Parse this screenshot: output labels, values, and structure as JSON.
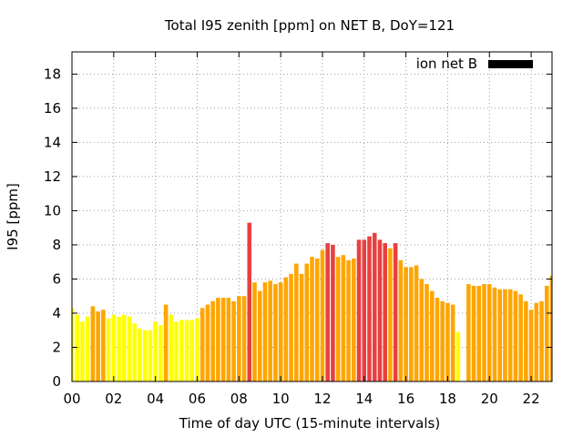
{
  "chart_data": {
    "type": "bar",
    "title": "Total I95 zenith [ppm] on NET B, DoY=121",
    "xlabel": "Time of day UTC (15-minute intervals)",
    "ylabel": "I95 [ppm]",
    "legend": {
      "label": "ion net B",
      "color": "#000000",
      "placement": "top-right"
    },
    "xlim": [
      0,
      23
    ],
    "ylim": [
      0,
      19.3
    ],
    "grid": true,
    "x_ticks": [
      {
        "value": 0,
        "label": "00"
      },
      {
        "value": 2,
        "label": "02"
      },
      {
        "value": 4,
        "label": "04"
      },
      {
        "value": 6,
        "label": "06"
      },
      {
        "value": 8,
        "label": "08"
      },
      {
        "value": 10,
        "label": "10"
      },
      {
        "value": 12,
        "label": "12"
      },
      {
        "value": 14,
        "label": "14"
      },
      {
        "value": 16,
        "label": "16"
      },
      {
        "value": 18,
        "label": "18"
      },
      {
        "value": 20,
        "label": "20"
      },
      {
        "value": 22,
        "label": "22"
      }
    ],
    "y_ticks": [
      {
        "value": 0,
        "label": "0"
      },
      {
        "value": 2,
        "label": "2"
      },
      {
        "value": 4,
        "label": "4"
      },
      {
        "value": 6,
        "label": "6"
      },
      {
        "value": 8,
        "label": "8"
      },
      {
        "value": 10,
        "label": "10"
      },
      {
        "value": 12,
        "label": "12"
      },
      {
        "value": 14,
        "label": "14"
      },
      {
        "value": 16,
        "label": "16"
      },
      {
        "value": 18,
        "label": "18"
      }
    ],
    "color_classes": {
      "low": "#ffff00",
      "mid": "#ffa500",
      "high": "#e84040"
    },
    "bar_width_hours": 0.2,
    "bars": [
      {
        "x": 0.0,
        "y": 4.3,
        "c": "low"
      },
      {
        "x": 0.25,
        "y": 3.9,
        "c": "low"
      },
      {
        "x": 0.5,
        "y": 3.5,
        "c": "low"
      },
      {
        "x": 0.75,
        "y": 3.8,
        "c": "low"
      },
      {
        "x": 1.0,
        "y": 4.4,
        "c": "mid"
      },
      {
        "x": 1.25,
        "y": 4.1,
        "c": "mid"
      },
      {
        "x": 1.5,
        "y": 4.2,
        "c": "mid"
      },
      {
        "x": 1.75,
        "y": 3.7,
        "c": "low"
      },
      {
        "x": 2.0,
        "y": 3.9,
        "c": "low"
      },
      {
        "x": 2.25,
        "y": 3.8,
        "c": "low"
      },
      {
        "x": 2.5,
        "y": 3.9,
        "c": "low"
      },
      {
        "x": 2.75,
        "y": 3.8,
        "c": "low"
      },
      {
        "x": 3.0,
        "y": 3.4,
        "c": "low"
      },
      {
        "x": 3.25,
        "y": 3.1,
        "c": "low"
      },
      {
        "x": 3.5,
        "y": 3.0,
        "c": "low"
      },
      {
        "x": 3.75,
        "y": 3.0,
        "c": "low"
      },
      {
        "x": 4.0,
        "y": 3.5,
        "c": "low"
      },
      {
        "x": 4.25,
        "y": 3.3,
        "c": "low"
      },
      {
        "x": 4.5,
        "y": 4.5,
        "c": "mid"
      },
      {
        "x": 4.75,
        "y": 3.9,
        "c": "low"
      },
      {
        "x": 5.0,
        "y": 3.5,
        "c": "low"
      },
      {
        "x": 5.25,
        "y": 3.6,
        "c": "low"
      },
      {
        "x": 5.5,
        "y": 3.6,
        "c": "low"
      },
      {
        "x": 5.75,
        "y": 3.6,
        "c": "low"
      },
      {
        "x": 6.0,
        "y": 3.7,
        "c": "low"
      },
      {
        "x": 6.25,
        "y": 4.3,
        "c": "mid"
      },
      {
        "x": 6.5,
        "y": 4.5,
        "c": "mid"
      },
      {
        "x": 6.75,
        "y": 4.7,
        "c": "mid"
      },
      {
        "x": 7.0,
        "y": 4.9,
        "c": "mid"
      },
      {
        "x": 7.25,
        "y": 4.9,
        "c": "mid"
      },
      {
        "x": 7.5,
        "y": 4.9,
        "c": "mid"
      },
      {
        "x": 7.75,
        "y": 4.7,
        "c": "mid"
      },
      {
        "x": 8.0,
        "y": 5.0,
        "c": "mid"
      },
      {
        "x": 8.25,
        "y": 5.0,
        "c": "mid"
      },
      {
        "x": 8.5,
        "y": 9.3,
        "c": "high"
      },
      {
        "x": 8.75,
        "y": 5.8,
        "c": "mid"
      },
      {
        "x": 9.0,
        "y": 5.3,
        "c": "mid"
      },
      {
        "x": 9.25,
        "y": 5.8,
        "c": "mid"
      },
      {
        "x": 9.5,
        "y": 5.9,
        "c": "mid"
      },
      {
        "x": 9.75,
        "y": 5.7,
        "c": "mid"
      },
      {
        "x": 10.0,
        "y": 5.8,
        "c": "mid"
      },
      {
        "x": 10.25,
        "y": 6.1,
        "c": "mid"
      },
      {
        "x": 10.5,
        "y": 6.3,
        "c": "mid"
      },
      {
        "x": 10.75,
        "y": 6.9,
        "c": "mid"
      },
      {
        "x": 11.0,
        "y": 6.3,
        "c": "mid"
      },
      {
        "x": 11.25,
        "y": 6.9,
        "c": "mid"
      },
      {
        "x": 11.5,
        "y": 7.3,
        "c": "mid"
      },
      {
        "x": 11.75,
        "y": 7.2,
        "c": "mid"
      },
      {
        "x": 12.0,
        "y": 7.7,
        "c": "mid"
      },
      {
        "x": 12.25,
        "y": 8.1,
        "c": "high"
      },
      {
        "x": 12.5,
        "y": 8.0,
        "c": "high"
      },
      {
        "x": 12.75,
        "y": 7.3,
        "c": "mid"
      },
      {
        "x": 13.0,
        "y": 7.4,
        "c": "mid"
      },
      {
        "x": 13.25,
        "y": 7.1,
        "c": "mid"
      },
      {
        "x": 13.5,
        "y": 7.2,
        "c": "mid"
      },
      {
        "x": 13.75,
        "y": 8.3,
        "c": "high"
      },
      {
        "x": 14.0,
        "y": 8.3,
        "c": "high"
      },
      {
        "x": 14.25,
        "y": 8.5,
        "c": "high"
      },
      {
        "x": 14.5,
        "y": 8.7,
        "c": "high"
      },
      {
        "x": 14.75,
        "y": 8.3,
        "c": "high"
      },
      {
        "x": 15.0,
        "y": 8.1,
        "c": "high"
      },
      {
        "x": 15.25,
        "y": 7.8,
        "c": "mid"
      },
      {
        "x": 15.5,
        "y": 8.1,
        "c": "high"
      },
      {
        "x": 15.75,
        "y": 7.1,
        "c": "mid"
      },
      {
        "x": 16.0,
        "y": 6.7,
        "c": "mid"
      },
      {
        "x": 16.25,
        "y": 6.7,
        "c": "mid"
      },
      {
        "x": 16.5,
        "y": 6.8,
        "c": "mid"
      },
      {
        "x": 16.75,
        "y": 6.0,
        "c": "mid"
      },
      {
        "x": 17.0,
        "y": 5.7,
        "c": "mid"
      },
      {
        "x": 17.25,
        "y": 5.3,
        "c": "mid"
      },
      {
        "x": 17.5,
        "y": 4.9,
        "c": "mid"
      },
      {
        "x": 17.75,
        "y": 4.7,
        "c": "mid"
      },
      {
        "x": 18.0,
        "y": 4.6,
        "c": "mid"
      },
      {
        "x": 18.25,
        "y": 4.5,
        "c": "mid"
      },
      {
        "x": 18.5,
        "y": 2.9,
        "c": "low"
      },
      {
        "x": 19.0,
        "y": 5.7,
        "c": "mid"
      },
      {
        "x": 19.25,
        "y": 5.6,
        "c": "mid"
      },
      {
        "x": 19.5,
        "y": 5.6,
        "c": "mid"
      },
      {
        "x": 19.75,
        "y": 5.7,
        "c": "mid"
      },
      {
        "x": 20.0,
        "y": 5.7,
        "c": "mid"
      },
      {
        "x": 20.25,
        "y": 5.5,
        "c": "mid"
      },
      {
        "x": 20.5,
        "y": 5.4,
        "c": "mid"
      },
      {
        "x": 20.75,
        "y": 5.4,
        "c": "mid"
      },
      {
        "x": 21.0,
        "y": 5.4,
        "c": "mid"
      },
      {
        "x": 21.25,
        "y": 5.3,
        "c": "mid"
      },
      {
        "x": 21.5,
        "y": 5.1,
        "c": "mid"
      },
      {
        "x": 21.75,
        "y": 4.7,
        "c": "mid"
      },
      {
        "x": 22.0,
        "y": 4.2,
        "c": "mid"
      },
      {
        "x": 22.25,
        "y": 4.6,
        "c": "mid"
      },
      {
        "x": 22.5,
        "y": 4.7,
        "c": "mid"
      },
      {
        "x": 22.75,
        "y": 5.6,
        "c": "mid"
      },
      {
        "x": 23.0,
        "y": 6.2,
        "c": "mid"
      }
    ]
  }
}
